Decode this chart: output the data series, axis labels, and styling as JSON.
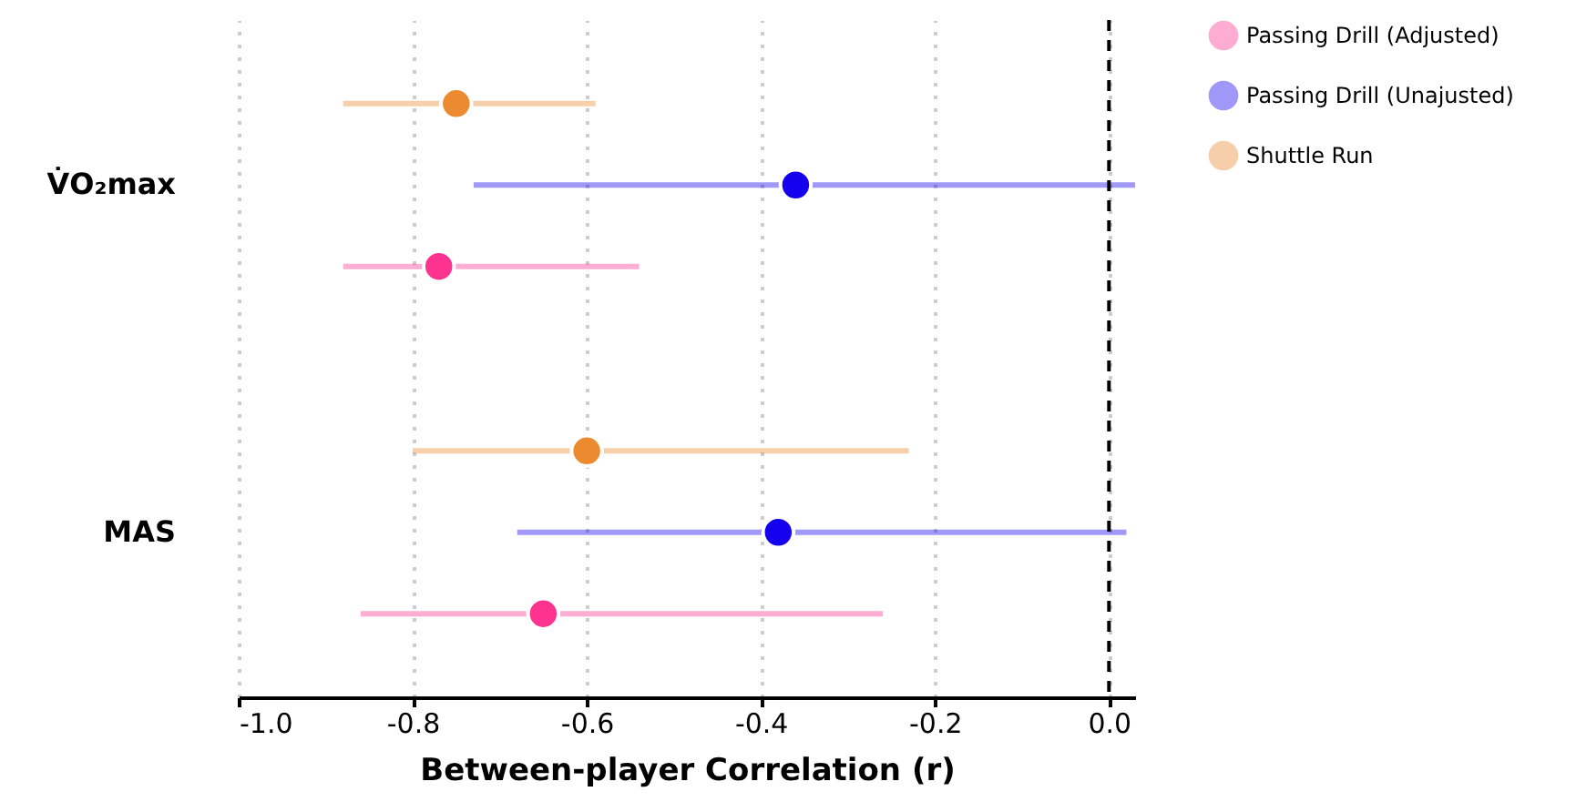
{
  "chart_data": {
    "type": "scatter",
    "orientation": "horizontal",
    "xlabel": "Between-player Correlation (r)",
    "categories": [
      "V̇O₂max",
      "MAS"
    ],
    "series": [
      {
        "name": "Passing Drill (Adjusted)",
        "color": "#fe338f",
        "values": [
          -0.77,
          -0.65
        ],
        "errors": [
          [
            -0.88,
            -0.54
          ],
          [
            -0.86,
            -0.26
          ]
        ]
      },
      {
        "name": "Passing Drill (Unajusted)",
        "color": "#1500ee",
        "values": [
          -0.36,
          -0.38
        ],
        "errors": [
          [
            -0.73,
            0.03
          ],
          [
            -0.68,
            0.02
          ]
        ]
      },
      {
        "name": "Shuttle Run",
        "color": "#eb8a2e",
        "values": [
          -0.75,
          -0.6
        ],
        "errors": [
          [
            -0.88,
            -0.59
          ],
          [
            -0.8,
            -0.23
          ]
        ]
      }
    ],
    "xlim": [
      -1.0,
      0.03
    ],
    "xticks": [
      {
        "value": -1.0,
        "label": "-1.0"
      },
      {
        "value": -0.8,
        "label": "-0.8"
      },
      {
        "value": -0.6,
        "label": "-0.6"
      },
      {
        "value": -0.4,
        "label": "-0.4"
      },
      {
        "value": -0.2,
        "label": "-0.2"
      },
      {
        "value": 0,
        "label": "0.0"
      }
    ],
    "ref_lines": [
      {
        "axis": "x",
        "value": 0,
        "line_style": "dashed",
        "color": "#000000"
      }
    ],
    "grid": "x",
    "legend": "right",
    "marker": "circle"
  }
}
